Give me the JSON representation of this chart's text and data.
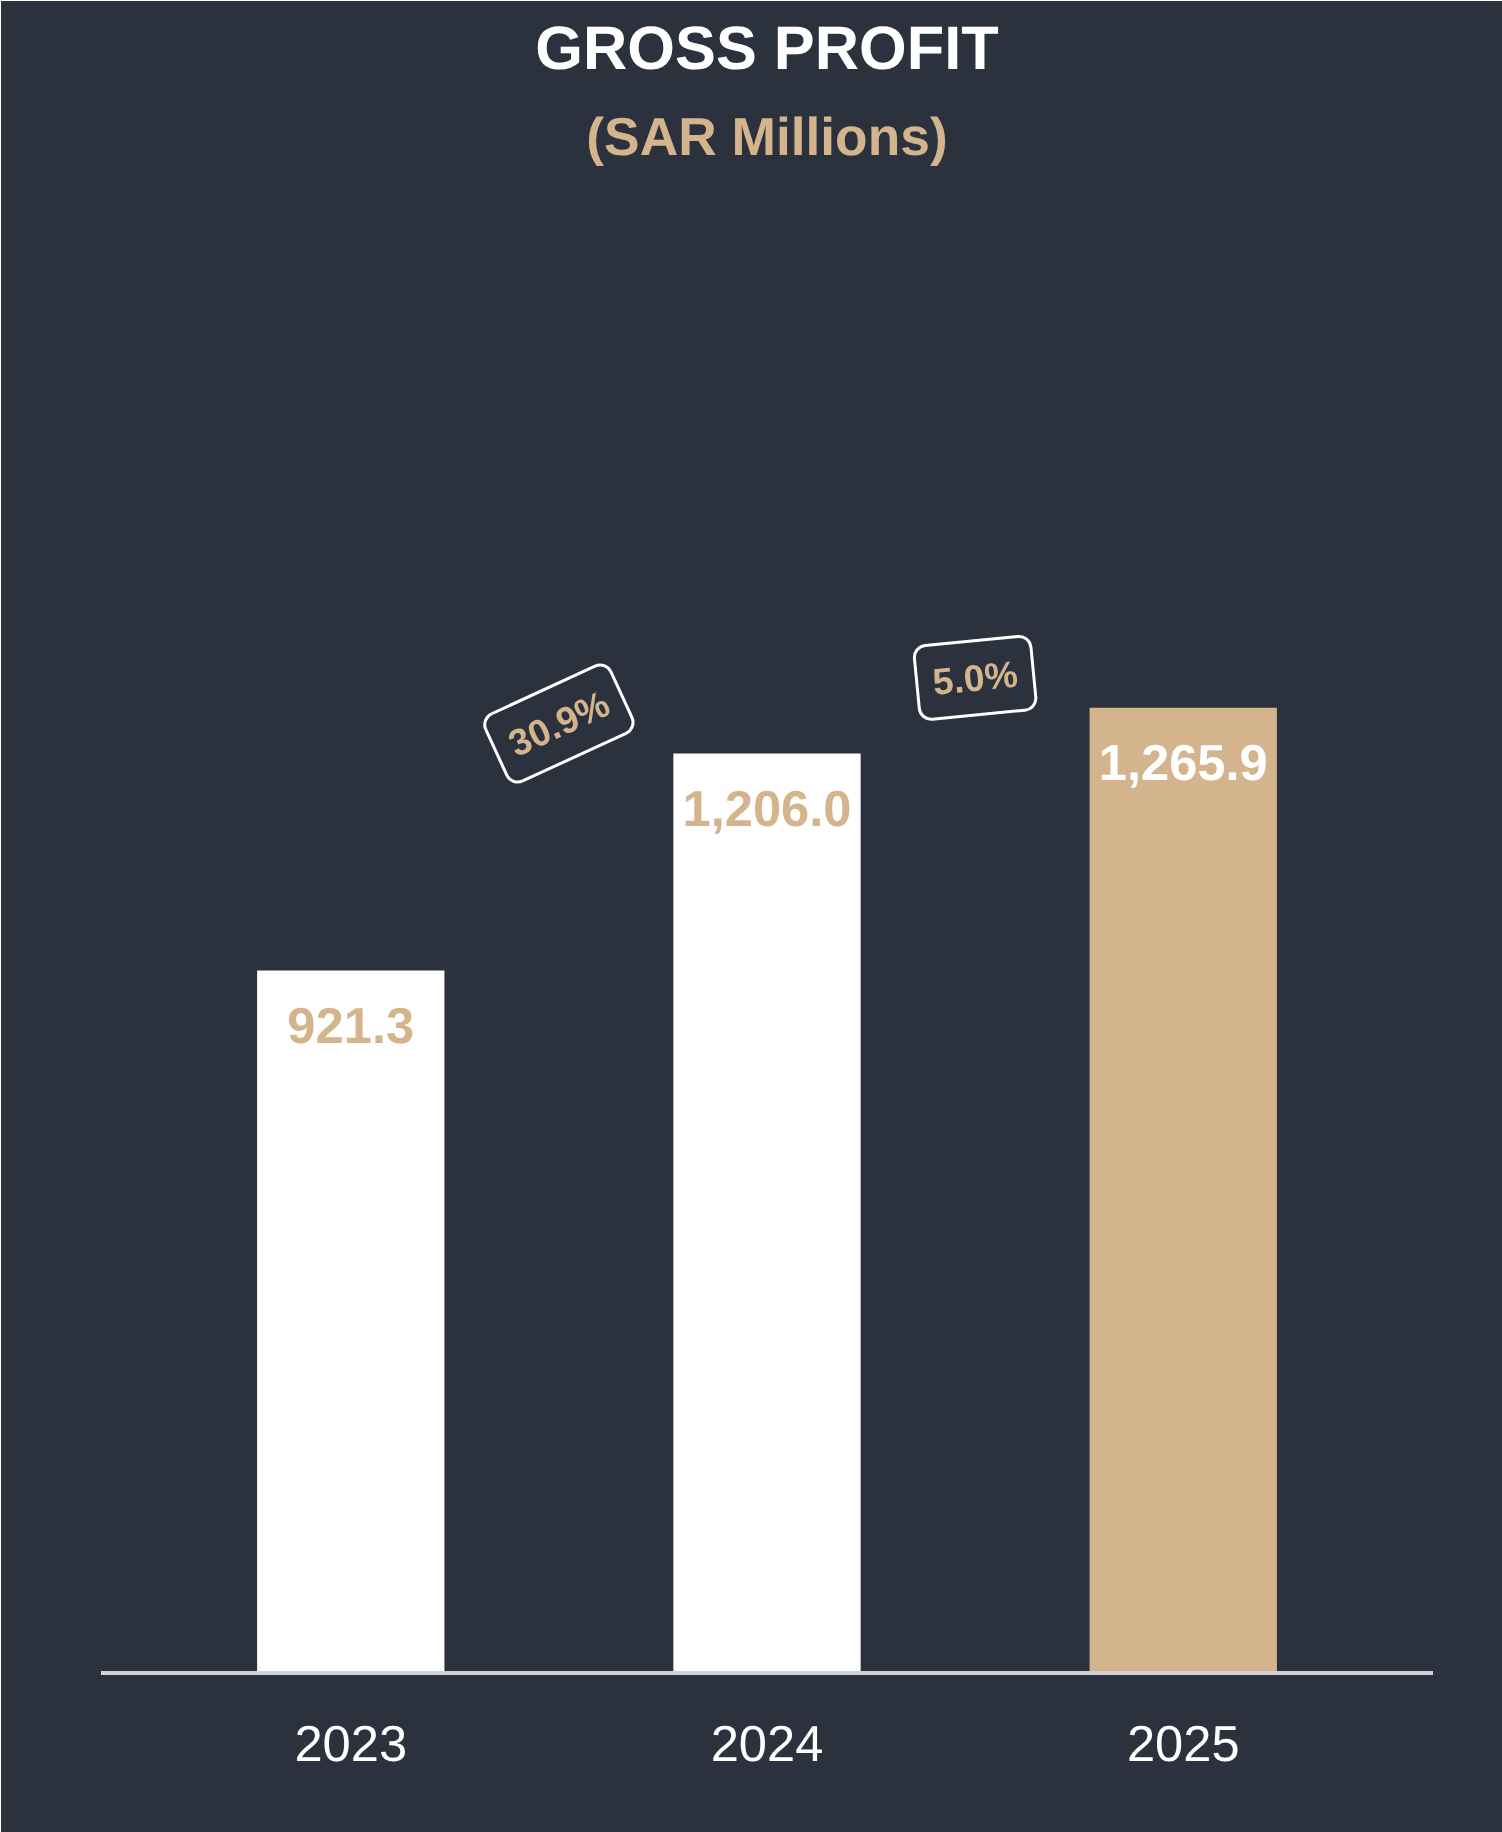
{
  "chart_data": {
    "type": "bar",
    "title": "GROSS PROFIT",
    "subtitle": "(SAR Millions)",
    "categories": [
      "2023",
      "2024",
      "2025"
    ],
    "values": [
      921.3,
      1206.0,
      1265.9
    ],
    "colors": [
      "#ffffff",
      "#ffffff",
      "#d4b48c"
    ],
    "value_labels": [
      "921.3",
      "1,206.0",
      "1,265.9"
    ],
    "annotations": [
      "30.9%",
      "5.0%"
    ],
    "grid": false
  }
}
